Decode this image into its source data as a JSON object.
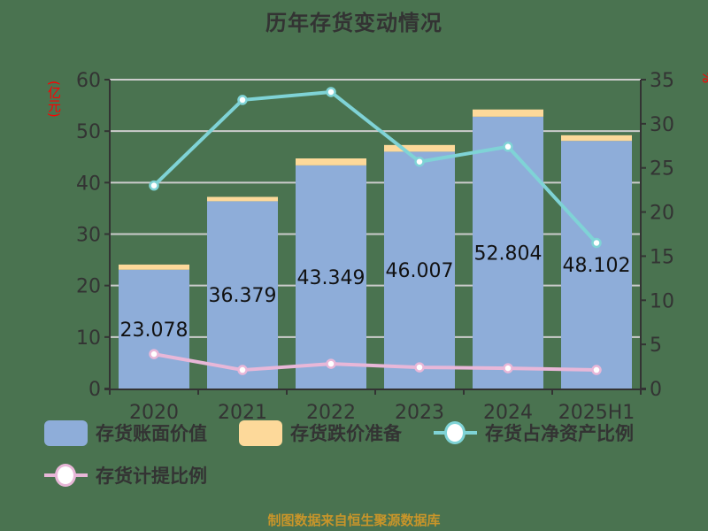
{
  "title": "历年存货变动情况",
  "footer": "制图数据来自恒生聚源数据库",
  "colors": {
    "background": "#4a7350",
    "book_value": "#8eadd9",
    "provision": "#fdd99a",
    "net_asset_ratio": "#7fd3d6",
    "provision_ratio": "#e8b7d8",
    "axis": "#333333",
    "grid": "#cccccc",
    "axis_title": "#ff0000",
    "footer": "#c8952a"
  },
  "legend": [
    {
      "label": "存货账面价值",
      "type": "bar",
      "color_key": "book_value"
    },
    {
      "label": "存货跌价准备",
      "type": "bar",
      "color_key": "provision"
    },
    {
      "label": "存货占净资产比例",
      "type": "line",
      "color_key": "net_asset_ratio"
    },
    {
      "label": "存货计提比例",
      "type": "line",
      "color_key": "provision_ratio"
    }
  ],
  "chart_data": {
    "type": "bar",
    "title": "历年存货变动情况",
    "xlabel": "",
    "ylabel": "(亿元)",
    "ylabel_right": "%",
    "categories": [
      "2020",
      "2021",
      "2022",
      "2023",
      "2024",
      "2025H1"
    ],
    "ylim": [
      0,
      60
    ],
    "yticks": [
      0,
      10,
      20,
      30,
      40,
      50,
      60
    ],
    "ylim_right": [
      0,
      35
    ],
    "yticks_right": [
      0,
      5,
      10,
      15,
      20,
      25,
      30,
      35
    ],
    "grid": true,
    "legend_position": "bottom",
    "stacked": true,
    "series": [
      {
        "name": "存货账面价值",
        "type": "bar",
        "axis": "left",
        "values": [
          23.078,
          36.379,
          43.349,
          46.007,
          52.804,
          48.102
        ],
        "data_labels": [
          "23.078",
          "36.379",
          "43.349",
          "46.007",
          "52.804",
          "48.102"
        ]
      },
      {
        "name": "存货跌价准备",
        "type": "bar",
        "axis": "left",
        "values": [
          1.0,
          0.85,
          1.35,
          1.3,
          1.4,
          1.1
        ]
      },
      {
        "name": "存货占净资产比例",
        "type": "line",
        "axis": "right",
        "values": [
          23.0,
          32.7,
          33.6,
          25.7,
          27.4,
          16.5
        ]
      },
      {
        "name": "存货计提比例",
        "type": "line",
        "axis": "right",
        "values": [
          3.9,
          2.1,
          2.8,
          2.4,
          2.3,
          2.1
        ]
      }
    ]
  }
}
